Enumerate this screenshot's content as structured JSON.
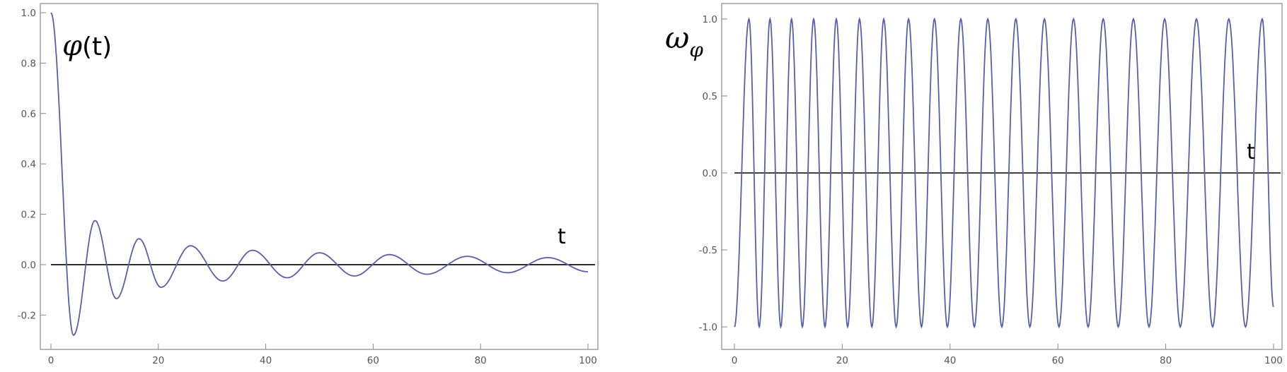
{
  "chart_data": [
    {
      "type": "line",
      "title": "",
      "xlabel": "t",
      "ylabel": "φ(t)",
      "ylabel_symbol": "φ",
      "ylabel_arg": "(t)",
      "xlim": [
        0,
        100
      ],
      "ylim": [
        -0.3,
        1.0
      ],
      "xticks": [
        0,
        20,
        40,
        60,
        80,
        100
      ],
      "yticks": [
        -0.2,
        0.0,
        0.2,
        0.4,
        0.6,
        0.8,
        1.0
      ],
      "xtick_labels": [
        "0",
        "20",
        "40",
        "60",
        "80",
        "100"
      ],
      "ytick_labels": [
        "-0.2",
        "0.0",
        "0.2",
        "0.4",
        "0.6",
        "0.8",
        "1.0"
      ],
      "grid": false,
      "line_color": "#5a5fa8",
      "axis_line_color": "#000000",
      "series": [
        {
          "x": [
            0,
            4.2,
            8.2,
            12.2,
            16.4,
            20.5,
            26.0,
            32.0,
            37.5,
            44.0,
            50.0,
            56.5,
            63.0,
            70.0,
            77.5,
            85.0,
            92.5,
            100
          ],
          "y": [
            1.0,
            -0.28,
            0.175,
            -0.135,
            0.103,
            -0.09,
            0.075,
            -0.065,
            0.057,
            -0.052,
            0.047,
            -0.045,
            0.04,
            -0.038,
            0.033,
            -0.032,
            0.028,
            -0.028
          ]
        }
      ]
    },
    {
      "type": "line",
      "title": "",
      "xlabel": "t",
      "ylabel": "ωφ",
      "ylabel_symbol": "ω",
      "ylabel_sub": "φ",
      "xlim": [
        0,
        100
      ],
      "ylim": [
        -1.05,
        1.05
      ],
      "xticks": [
        0,
        20,
        40,
        60,
        80,
        100
      ],
      "yticks": [
        -1.0,
        -0.5,
        0.0,
        0.5,
        1.0
      ],
      "xtick_labels": [
        "0",
        "20",
        "40",
        "60",
        "80",
        "100"
      ],
      "ytick_labels": [
        "-1.0",
        "-0.5",
        "0.0",
        "0.5",
        "1.0"
      ],
      "grid": false,
      "line_color": "#5a5fa8",
      "axis_line_color": "#000000",
      "series": [
        {
          "x": [
            0,
            2.7,
            4.6,
            6.6,
            8.6,
            10.6,
            12.6,
            14.7,
            16.8,
            18.9,
            21.0,
            23.2,
            25.5,
            27.7,
            30.0,
            32.3,
            34.7,
            37.1,
            39.5,
            42.0,
            44.5,
            47.0,
            49.6,
            52.2,
            54.8,
            57.5,
            60.2,
            62.9,
            65.6,
            68.4,
            71.2,
            74.0,
            76.9,
            79.8,
            82.7,
            85.7,
            88.7,
            91.7,
            94.8,
            97.9,
            100
          ],
          "y": [
            -1.0,
            1.0,
            -1.0,
            1.0,
            -1.0,
            1.0,
            -1.0,
            1.0,
            -1.0,
            1.0,
            -1.0,
            1.0,
            -1.0,
            1.0,
            -1.0,
            1.0,
            -1.0,
            1.0,
            -1.0,
            1.0,
            -1.0,
            1.0,
            -1.0,
            1.0,
            -1.0,
            1.0,
            -1.0,
            1.0,
            -1.0,
            1.0,
            -1.0,
            1.0,
            -1.0,
            1.0,
            -1.0,
            1.0,
            -1.0,
            1.0,
            -1.0,
            1.0,
            -0.87
          ]
        }
      ]
    }
  ]
}
